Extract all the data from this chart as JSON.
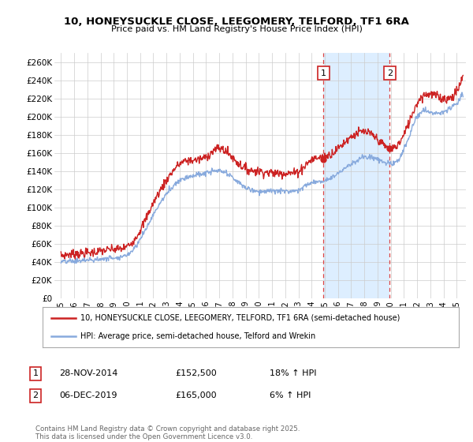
{
  "title": "10, HONEYSUCKLE CLOSE, LEEGOMERY, TELFORD, TF1 6RA",
  "subtitle": "Price paid vs. HM Land Registry's House Price Index (HPI)",
  "ylabel_ticks": [
    "£0",
    "£20K",
    "£40K",
    "£60K",
    "£80K",
    "£100K",
    "£120K",
    "£140K",
    "£160K",
    "£180K",
    "£200K",
    "£220K",
    "£240K",
    "£260K"
  ],
  "ylim": [
    0,
    270000
  ],
  "ytick_vals": [
    0,
    20000,
    40000,
    60000,
    80000,
    100000,
    120000,
    140000,
    160000,
    180000,
    200000,
    220000,
    240000,
    260000
  ],
  "xlim_start": 1994.5,
  "xlim_end": 2025.7,
  "xticks": [
    1995,
    1996,
    1997,
    1998,
    1999,
    2000,
    2001,
    2002,
    2003,
    2004,
    2005,
    2006,
    2007,
    2008,
    2009,
    2010,
    2011,
    2012,
    2013,
    2014,
    2015,
    2016,
    2017,
    2018,
    2019,
    2020,
    2021,
    2022,
    2023,
    2024,
    2025
  ],
  "sale1_x": 2014.9,
  "sale1_y": 152500,
  "sale2_x": 2019.92,
  "sale2_y": 165000,
  "vline_color": "#dd4444",
  "shade_color": "#ddeeff",
  "legend_line1": "10, HONEYSUCKLE CLOSE, LEEGOMERY, TELFORD, TF1 6RA (semi-detached house)",
  "legend_line2": "HPI: Average price, semi-detached house, Telford and Wrekin",
  "table_row1": [
    "1",
    "28-NOV-2014",
    "£152,500",
    "18% ↑ HPI"
  ],
  "table_row2": [
    "2",
    "06-DEC-2019",
    "£165,000",
    "6% ↑ HPI"
  ],
  "footer": "Contains HM Land Registry data © Crown copyright and database right 2025.\nThis data is licensed under the Open Government Licence v3.0.",
  "price_color": "#cc2222",
  "hpi_color": "#88aadd",
  "grid_color": "#cccccc",
  "bg_color": "#ffffff",
  "price_years": [
    1995,
    1996,
    1997,
    1998,
    1999,
    2000,
    2001,
    2002,
    2003,
    2004,
    2005,
    2006,
    2007,
    2008,
    2009,
    2010,
    2011,
    2012,
    2013,
    2014,
    2015,
    2016,
    2017,
    2018,
    2019,
    2020,
    2021,
    2022,
    2023,
    2024,
    2025
  ],
  "price_vals": [
    47000,
    49000,
    50000,
    52000,
    54000,
    57000,
    75000,
    105000,
    130000,
    148000,
    152000,
    156000,
    165000,
    155000,
    143000,
    140000,
    138000,
    138000,
    140000,
    152500,
    156000,
    165000,
    178000,
    183000,
    175000,
    165000,
    180000,
    215000,
    225000,
    220000,
    228000
  ],
  "hpi_years": [
    1995,
    1996,
    1997,
    1998,
    1999,
    2000,
    2001,
    2002,
    2003,
    2004,
    2005,
    2006,
    2007,
    2008,
    2009,
    2010,
    2011,
    2012,
    2013,
    2014,
    2015,
    2016,
    2017,
    2018,
    2019,
    2020,
    2021,
    2022,
    2023,
    2024,
    2025
  ],
  "hpi_vals": [
    40000,
    41000,
    42000,
    43000,
    45000,
    48000,
    65000,
    92000,
    115000,
    130000,
    135000,
    138000,
    140000,
    133000,
    122000,
    118000,
    118000,
    118000,
    120000,
    127000,
    130000,
    138000,
    148000,
    155000,
    153000,
    148000,
    163000,
    200000,
    205000,
    205000,
    215000
  ]
}
